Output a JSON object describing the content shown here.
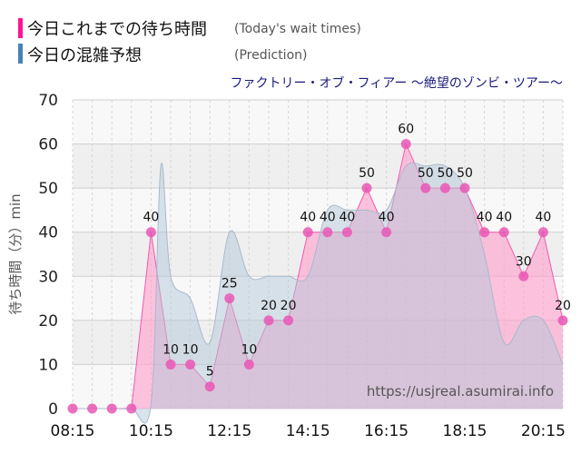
{
  "legend": {
    "today_label": "今日これまでの待ち時間",
    "today_sub": "(Today's wait times)",
    "prediction_label": "今日の混雑予想",
    "prediction_sub": "(Prediction)"
  },
  "attraction_title": "ファクトリー・オブ・フィアー 〜絶望のゾンビ・ツアー〜",
  "watermark": "https://usjreal.asumirai.info",
  "colors": {
    "today": "#ff1493",
    "today_fill": "#ff9ccc",
    "today_line": "#f05aad",
    "today_point": "#e957b5",
    "prediction": "#4682b4",
    "prediction_fill": "#b4c8d8",
    "prediction_line": "#a9b9cc",
    "title": "#1a1a7a",
    "band": "#efefef"
  },
  "chart_data": {
    "type": "area",
    "xlabel": "",
    "ylabel": "待ち時間（分）min",
    "ylim": [
      0,
      70
    ],
    "yticks": [
      0,
      10,
      20,
      30,
      40,
      50,
      60,
      70
    ],
    "xlim": [
      "08:15",
      "20:45"
    ],
    "xticks": [
      "08:15",
      "10:15",
      "12:15",
      "14:15",
      "16:15",
      "18:15",
      "20:15"
    ],
    "grid": true,
    "series": [
      {
        "name": "今日これまでの待ち時間",
        "x": [
          "08:15",
          "08:45",
          "09:15",
          "09:45",
          "10:15",
          "10:45",
          "11:15",
          "11:45",
          "12:15",
          "12:45",
          "13:15",
          "13:45",
          "14:15",
          "14:45",
          "15:15",
          "15:45",
          "16:15",
          "16:45",
          "17:15",
          "17:45",
          "18:15",
          "18:45",
          "19:15",
          "19:45",
          "20:15",
          "20:45"
        ],
        "values": [
          0,
          0,
          0,
          0,
          40,
          10,
          10,
          5,
          25,
          10,
          20,
          20,
          40,
          40,
          40,
          50,
          40,
          60,
          50,
          50,
          50,
          40,
          40,
          30,
          40,
          20
        ],
        "data_labels": true
      },
      {
        "name": "今日の混雑予想",
        "x": [
          "08:15",
          "08:45",
          "09:15",
          "09:45",
          "10:15",
          "10:30",
          "10:45",
          "11:15",
          "11:45",
          "12:15",
          "12:45",
          "13:15",
          "13:45",
          "14:15",
          "14:45",
          "15:15",
          "15:45",
          "16:15",
          "16:45",
          "17:15",
          "17:45",
          "18:15",
          "18:45",
          "19:15",
          "19:45",
          "20:15",
          "20:45"
        ],
        "values": [
          0,
          0,
          0,
          0,
          1,
          55,
          30,
          25,
          15,
          40,
          30,
          30,
          30,
          30,
          45,
          45,
          45,
          45,
          55,
          55,
          55,
          50,
          35,
          15,
          20,
          20,
          10
        ],
        "data_labels": false
      }
    ]
  }
}
